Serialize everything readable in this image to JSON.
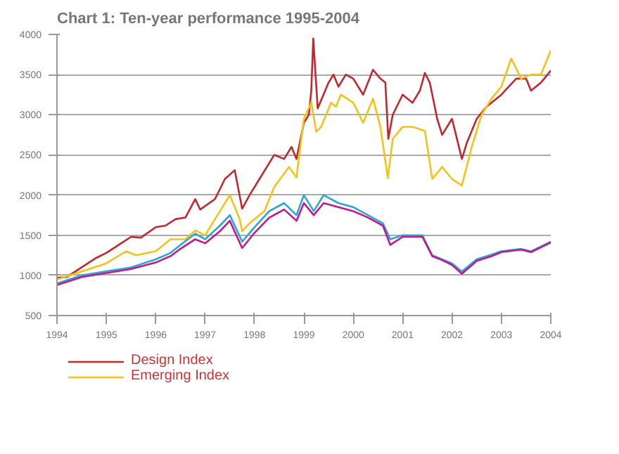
{
  "chart_data": {
    "type": "line",
    "title": "Chart 1: Ten-year performance 1995-2004",
    "xlim": [
      1994,
      2004
    ],
    "xticks": [
      1994,
      1995,
      1996,
      1997,
      1998,
      1999,
      2000,
      2001,
      2002,
      2003,
      2004
    ],
    "ylim": [
      500,
      4000
    ],
    "yticks": [
      500,
      1000,
      1500,
      2000,
      2500,
      3000,
      3500,
      4000
    ],
    "grid": "y",
    "legend": "bottom",
    "series": [
      {
        "name": "Design Index",
        "color": "#c0282d",
        "x": [
          1994.0,
          1994.2,
          1994.5,
          1994.8,
          1995.0,
          1995.3,
          1995.5,
          1995.7,
          1996.0,
          1996.2,
          1996.4,
          1996.6,
          1996.8,
          1996.9,
          1997.2,
          1997.4,
          1997.6,
          1997.75,
          1997.9,
          1998.1,
          1998.4,
          1998.6,
          1998.75,
          1998.85,
          1999.0,
          1999.1,
          1999.15,
          1999.19,
          1999.28,
          1999.5,
          1999.6,
          1999.7,
          1999.85,
          2000.0,
          2000.2,
          2000.4,
          2000.55,
          2000.65,
          2000.71,
          2000.8,
          2001.0,
          2001.2,
          2001.35,
          2001.45,
          2001.55,
          2001.7,
          2001.8,
          2002.0,
          2002.1,
          2002.2,
          2002.3,
          2002.5,
          2002.7,
          2003.0,
          2003.3,
          2003.5,
          2003.6,
          2003.8,
          2004.0
        ],
        "values": [
          970,
          980,
          1100,
          1220,
          1280,
          1400,
          1480,
          1470,
          1600,
          1620,
          1700,
          1720,
          1950,
          1820,
          1950,
          2200,
          2310,
          1830,
          2000,
          2200,
          2500,
          2450,
          2600,
          2450,
          2900,
          3000,
          3300,
          3950,
          3080,
          3400,
          3500,
          3350,
          3500,
          3450,
          3250,
          3560,
          3450,
          3400,
          2700,
          3000,
          3250,
          3150,
          3300,
          3520,
          3400,
          2950,
          2750,
          2950,
          2700,
          2450,
          2650,
          2950,
          3100,
          3250,
          3450,
          3450,
          3300,
          3400,
          3550
        ]
      },
      {
        "name": "Emerging Index",
        "color": "#f2c318",
        "x": [
          1994.0,
          1994.5,
          1995.0,
          1995.4,
          1995.6,
          1996.0,
          1996.3,
          1996.6,
          1996.8,
          1997.0,
          1997.2,
          1997.5,
          1997.7,
          1997.75,
          1997.9,
          1998.2,
          1998.4,
          1998.7,
          1998.85,
          1999.0,
          1999.15,
          1999.25,
          1999.35,
          1999.55,
          1999.65,
          1999.75,
          2000.0,
          2000.2,
          2000.4,
          2000.55,
          2000.7,
          2000.8,
          2001.0,
          2001.2,
          2001.45,
          2001.6,
          2001.8,
          2002.0,
          2002.2,
          2002.4,
          2002.6,
          2002.8,
          2003.0,
          2003.2,
          2003.4,
          2003.6,
          2003.8,
          2004.0
        ],
        "values": [
          950,
          1050,
          1150,
          1300,
          1250,
          1300,
          1450,
          1450,
          1560,
          1500,
          1700,
          2000,
          1700,
          1550,
          1650,
          1800,
          2100,
          2350,
          2220,
          2950,
          3150,
          2790,
          2850,
          3150,
          3100,
          3250,
          3150,
          2900,
          3200,
          2850,
          2210,
          2700,
          2850,
          2850,
          2800,
          2200,
          2350,
          2200,
          2120,
          2600,
          3000,
          3200,
          3350,
          3700,
          3450,
          3500,
          3500,
          3800
        ]
      },
      {
        "color": "#2aa7d6",
        "x": [
          1994.0,
          1994.5,
          1995.0,
          1995.5,
          1996.0,
          1996.3,
          1996.5,
          1996.8,
          1997.0,
          1997.3,
          1997.5,
          1997.75,
          1998.0,
          1998.3,
          1998.6,
          1998.85,
          1999.0,
          1999.2,
          1999.4,
          1999.7,
          2000.0,
          2000.3,
          2000.6,
          2000.75,
          2001.0,
          2001.4,
          2001.6,
          2001.8,
          2002.0,
          2002.2,
          2002.5,
          2002.8,
          2003.0,
          2003.4,
          2003.6,
          2004.0
        ],
        "values": [
          900,
          1000,
          1050,
          1100,
          1200,
          1280,
          1380,
          1520,
          1450,
          1620,
          1750,
          1420,
          1600,
          1800,
          1900,
          1750,
          2000,
          1800,
          2000,
          1900,
          1850,
          1750,
          1650,
          1450,
          1500,
          1500,
          1250,
          1200,
          1150,
          1050,
          1200,
          1260,
          1300,
          1330,
          1300,
          1420
        ]
      },
      {
        "color": "#c2188b",
        "x": [
          1994.0,
          1994.5,
          1995.0,
          1995.5,
          1996.0,
          1996.3,
          1996.5,
          1996.8,
          1997.0,
          1997.3,
          1997.5,
          1997.75,
          1998.0,
          1998.3,
          1998.6,
          1998.85,
          1999.0,
          1999.2,
          1999.4,
          1999.7,
          2000.0,
          2000.3,
          2000.6,
          2000.75,
          2001.0,
          2001.4,
          2001.6,
          2001.8,
          2002.0,
          2002.2,
          2002.5,
          2002.8,
          2003.0,
          2003.4,
          2003.6,
          2004.0
        ],
        "values": [
          880,
          980,
          1030,
          1080,
          1160,
          1240,
          1330,
          1450,
          1400,
          1550,
          1680,
          1340,
          1530,
          1720,
          1820,
          1680,
          1900,
          1750,
          1900,
          1850,
          1800,
          1720,
          1620,
          1380,
          1480,
          1480,
          1240,
          1190,
          1130,
          1020,
          1180,
          1240,
          1290,
          1320,
          1290,
          1410
        ]
      }
    ]
  }
}
